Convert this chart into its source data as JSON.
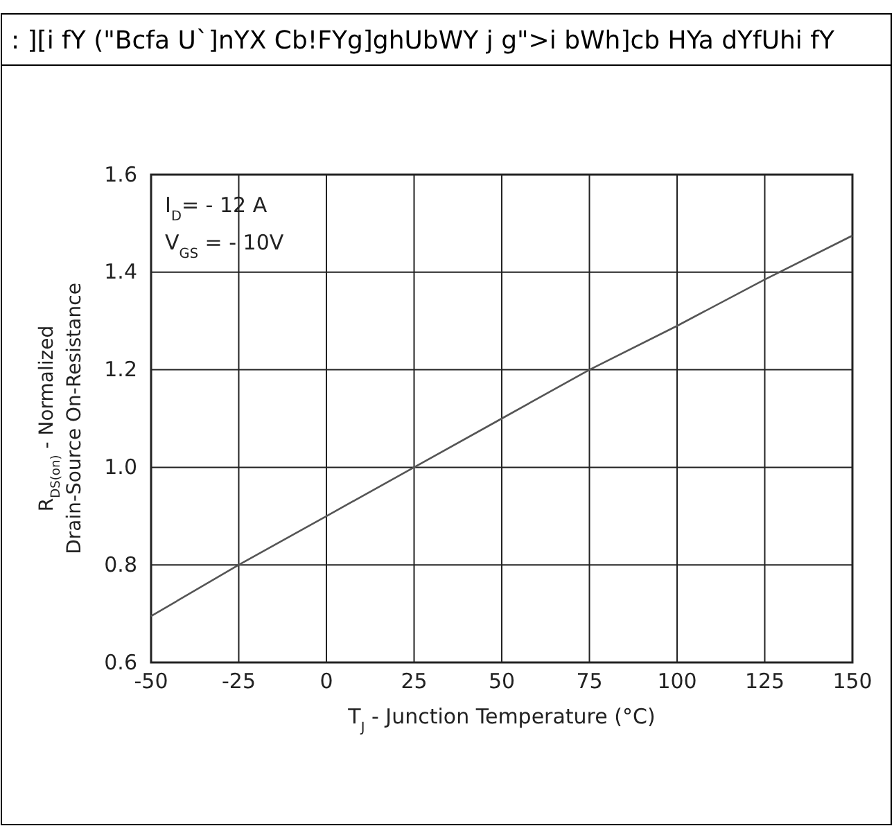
{
  "chart_data": {
    "type": "line",
    "title": ": ][i fY (\"Bcfa U`]nYX Cb!FYg]ghUbWY j g\">i bWh]cb HYa dYfUhi fY",
    "xlabel": "T$_{J}$ - Junction Temperature (°C)",
    "ylabel": "R$_{DS(on)}$ - Normalized\nDrain-Source On-Resistance",
    "annotations": [
      "I$_{D}$= - 12 A",
      "V$_{GS}$ = - 10V"
    ],
    "x": [
      -50,
      -25,
      0,
      25,
      50,
      75,
      100,
      125,
      150
    ],
    "series": [
      {
        "color": "#555555",
        "values": [
          0.695,
          0.8,
          0.9,
          1.0,
          1.1,
          1.2,
          1.29,
          1.385,
          1.475
        ]
      }
    ],
    "xlim": [
      -50,
      150
    ],
    "xticks": [
      -50,
      -25,
      0,
      25,
      50,
      75,
      100,
      125,
      150
    ],
    "ylim": [
      0.6,
      1.6
    ],
    "yticks": [
      {
        "value": 0.6,
        "label": "0.6"
      },
      {
        "value": 0.8,
        "label": "0.8"
      },
      {
        "value": 1.0,
        "label": "1.0"
      },
      {
        "value": 1.2,
        "label": "1.2"
      },
      {
        "value": 1.4,
        "label": "1.4"
      },
      {
        "value": 1.6,
        "label": "1.6"
      }
    ],
    "grid": true,
    "marker": "none",
    "line_style": "solid"
  }
}
